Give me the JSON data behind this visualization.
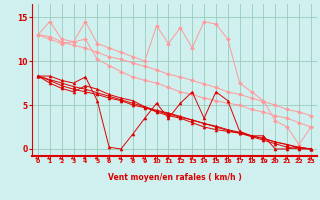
{
  "bg_color": "#cff0ee",
  "grid_color": "#99ccbb",
  "line_color_dark": "#dd0000",
  "line_color_light": "#ff9999",
  "xlabel": "Vent moyen/en rafales ( km/h )",
  "ylabel_ticks": [
    0,
    5,
    10,
    15
  ],
  "xlim": [
    -0.5,
    23.5
  ],
  "ylim": [
    -0.8,
    16.5
  ],
  "xticks": [
    0,
    1,
    2,
    3,
    4,
    5,
    6,
    7,
    8,
    9,
    10,
    11,
    12,
    13,
    14,
    15,
    16,
    17,
    18,
    19,
    20,
    21,
    22,
    23
  ],
  "series_dark": [
    [
      8.3,
      8.3,
      7.8,
      7.5,
      8.2,
      5.5,
      0.2,
      0.0,
      1.7,
      3.5,
      5.2,
      3.5,
      5.2,
      6.5,
      3.5,
      6.5,
      5.5,
      2.0,
      1.5,
      1.5,
      0.0,
      0.0,
      0.2,
      0.0
    ],
    [
      8.3,
      7.5,
      6.9,
      6.5,
      7.2,
      6.8,
      6.2,
      5.8,
      5.5,
      4.8,
      4.2,
      3.8,
      3.5,
      3.0,
      2.5,
      2.2,
      2.0,
      1.8,
      1.5,
      1.2,
      0.8,
      0.5,
      0.2,
      0.0
    ],
    [
      8.3,
      7.8,
      7.2,
      6.8,
      6.5,
      6.2,
      5.8,
      5.5,
      5.0,
      4.7,
      4.3,
      4.0,
      3.6,
      3.3,
      2.9,
      2.6,
      2.2,
      1.9,
      1.5,
      1.2,
      0.8,
      0.5,
      0.1,
      0.0
    ],
    [
      8.3,
      7.9,
      7.5,
      7.1,
      6.8,
      6.4,
      6.0,
      5.6,
      5.2,
      4.8,
      4.4,
      4.1,
      3.7,
      3.3,
      2.9,
      2.5,
      2.1,
      1.8,
      1.4,
      1.0,
      0.6,
      0.2,
      0.0,
      0.0
    ]
  ],
  "series_light": [
    [
      13.0,
      14.5,
      12.5,
      12.2,
      14.5,
      12.0,
      11.5,
      11.0,
      10.5,
      10.0,
      14.0,
      12.0,
      13.8,
      11.5,
      14.5,
      14.2,
      12.5,
      7.5,
      6.5,
      5.5,
      3.2,
      2.5,
      0.5,
      2.5
    ],
    [
      13.0,
      12.5,
      12.0,
      12.2,
      12.5,
      10.2,
      9.5,
      8.8,
      8.2,
      7.8,
      7.5,
      7.0,
      6.5,
      6.2,
      5.8,
      5.5,
      5.2,
      5.0,
      4.5,
      4.2,
      3.8,
      3.5,
      3.0,
      2.5
    ],
    [
      13.0,
      12.8,
      12.2,
      11.8,
      11.5,
      11.0,
      10.5,
      10.2,
      9.8,
      9.4,
      9.0,
      8.5,
      8.2,
      7.8,
      7.4,
      7.0,
      6.5,
      6.2,
      5.8,
      5.4,
      5.0,
      4.5,
      4.2,
      3.8
    ]
  ]
}
